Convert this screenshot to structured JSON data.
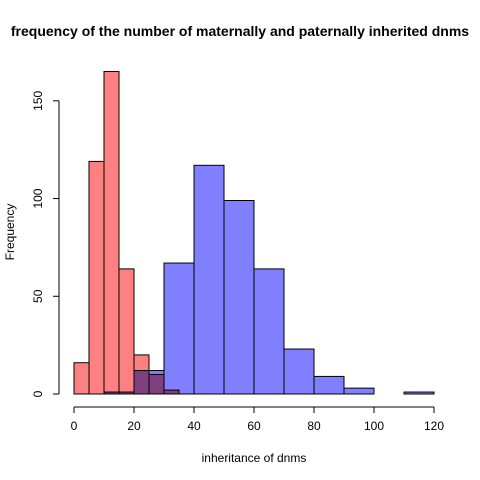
{
  "chart_data": {
    "type": "bar",
    "title": "frequency of the number of maternally and paternally inherited dnms",
    "xlabel": "inheritance of dnms",
    "ylabel": "Frequency",
    "xlim": [
      0,
      120
    ],
    "ylim": [
      0,
      165
    ],
    "x_ticks": [
      0,
      20,
      40,
      60,
      80,
      100,
      120
    ],
    "y_ticks": [
      0,
      50,
      100,
      150
    ],
    "grid": false,
    "legend": "none",
    "series": [
      {
        "color": "#ff8080",
        "bins": [
          {
            "start": 0,
            "end": 5,
            "count": 16
          },
          {
            "start": 5,
            "end": 10,
            "count": 119
          },
          {
            "start": 10,
            "end": 15,
            "count": 165
          },
          {
            "start": 15,
            "end": 20,
            "count": 64
          },
          {
            "start": 20,
            "end": 25,
            "count": 20
          },
          {
            "start": 25,
            "end": 30,
            "count": 10
          },
          {
            "start": 30,
            "end": 35,
            "count": 2
          }
        ]
      },
      {
        "color": "#8080ff",
        "bins": [
          {
            "start": 10,
            "end": 20,
            "count": 1
          },
          {
            "start": 20,
            "end": 30,
            "count": 12
          },
          {
            "start": 30,
            "end": 40,
            "count": 67
          },
          {
            "start": 40,
            "end": 50,
            "count": 117
          },
          {
            "start": 50,
            "end": 60,
            "count": 99
          },
          {
            "start": 60,
            "end": 70,
            "count": 64
          },
          {
            "start": 70,
            "end": 80,
            "count": 23
          },
          {
            "start": 80,
            "end": 90,
            "count": 9
          },
          {
            "start": 90,
            "end": 100,
            "count": 3
          },
          {
            "start": 100,
            "end": 110,
            "count": 0
          },
          {
            "start": 110,
            "end": 120,
            "count": 1
          }
        ]
      }
    ]
  }
}
